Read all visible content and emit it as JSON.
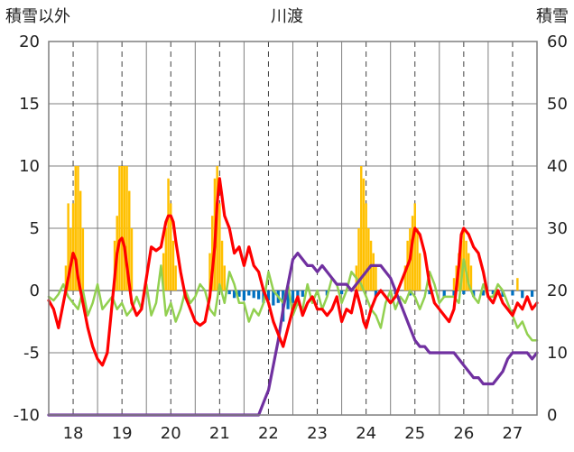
{
  "chart_data": {
    "type": "line",
    "title": "川渡",
    "ylabel_left": "積雪以外",
    "ylabel_right": "積雪",
    "xlabel": "",
    "x_range": [
      17.5,
      27.5
    ],
    "ylim_left": [
      -10,
      20
    ],
    "ylim_right": [
      0,
      60
    ],
    "y_ticks_left": [
      -10,
      -5,
      0,
      5,
      10,
      15,
      20
    ],
    "y_ticks_right": [
      0,
      10,
      20,
      30,
      40,
      50,
      60
    ],
    "x_ticks": [
      "18",
      "19",
      "20",
      "21",
      "22",
      "23",
      "24",
      "25",
      "26",
      "27"
    ],
    "grid": true,
    "legend": "none",
    "colors": {
      "red": "#ff0000",
      "green": "#92d050",
      "purple": "#7030a0",
      "orange": "#ffc000",
      "blue": "#0070c0",
      "frame": "#7f7f7f"
    },
    "bars_orange": {
      "axis": "left",
      "x": [
        17.85,
        17.9,
        17.95,
        18.0,
        18.05,
        18.1,
        18.15,
        18.2,
        18.85,
        18.9,
        18.95,
        19.0,
        19.05,
        19.1,
        19.15,
        19.2,
        19.85,
        19.9,
        19.95,
        20.0,
        20.05,
        20.1,
        20.8,
        20.85,
        20.9,
        20.95,
        21.0,
        21.05,
        21.1,
        23.8,
        23.85,
        23.9,
        23.95,
        24.0,
        24.05,
        24.1,
        24.15,
        24.2,
        24.8,
        24.85,
        24.9,
        24.95,
        25.0,
        25.05,
        25.1,
        25.8,
        25.85,
        25.9,
        25.95,
        26.0,
        26.05,
        26.1,
        26.15,
        27.1
      ],
      "values": [
        2,
        7,
        5,
        7,
        10,
        10,
        8,
        5,
        4,
        6,
        10,
        10,
        10,
        10,
        8,
        5,
        3,
        5,
        9,
        7,
        4,
        2,
        3,
        6,
        9,
        10,
        7,
        4,
        2,
        2,
        5,
        10,
        9,
        7,
        5,
        4,
        3,
        2,
        2,
        4,
        5,
        6,
        7,
        5,
        3,
        1,
        2,
        3,
        4,
        5,
        4,
        3,
        2,
        1
      ]
    },
    "bars_blue": {
      "axis": "left",
      "x": [
        21.2,
        21.3,
        21.4,
        21.5,
        21.6,
        21.7,
        21.8,
        21.9,
        22.0,
        22.1,
        22.2,
        22.3,
        22.4,
        22.5,
        22.6,
        22.7,
        23.0,
        23.2,
        23.5,
        23.8,
        24.2,
        24.6,
        24.9,
        25.3,
        25.6,
        25.8,
        26.0,
        26.2,
        26.4,
        26.6,
        26.8,
        27.0,
        27.2,
        27.4
      ],
      "values": [
        -0.3,
        -0.6,
        -0.5,
        -0.8,
        -0.4,
        -0.6,
        -0.7,
        -1.0,
        -0.8,
        -1.2,
        -1.0,
        -2.5,
        -1.5,
        -1.0,
        -0.8,
        -0.5,
        -0.3,
        -0.4,
        -0.3,
        -0.4,
        -0.5,
        -0.3,
        -0.4,
        -0.3,
        -0.5,
        -0.4,
        -0.3,
        -0.5,
        -0.4,
        -0.3,
        -0.5,
        -0.4,
        -0.6,
        -0.5
      ]
    },
    "series": [
      {
        "color": "red",
        "axis": "left",
        "x": [
          17.5,
          17.6,
          17.7,
          17.8,
          17.9,
          18.0,
          18.05,
          18.1,
          18.2,
          18.3,
          18.4,
          18.5,
          18.6,
          18.7,
          18.8,
          18.9,
          18.95,
          19.0,
          19.05,
          19.1,
          19.2,
          19.3,
          19.4,
          19.5,
          19.6,
          19.7,
          19.8,
          19.9,
          19.95,
          20.0,
          20.05,
          20.1,
          20.2,
          20.3,
          20.4,
          20.5,
          20.6,
          20.7,
          20.8,
          20.9,
          20.95,
          21.0,
          21.05,
          21.1,
          21.2,
          21.3,
          21.4,
          21.5,
          21.6,
          21.7,
          21.8,
          21.9,
          22.0,
          22.1,
          22.2,
          22.3,
          22.4,
          22.5,
          22.6,
          22.7,
          22.8,
          22.9,
          23.0,
          23.1,
          23.2,
          23.3,
          23.4,
          23.5,
          23.6,
          23.7,
          23.8,
          23.9,
          23.95,
          24.0,
          24.1,
          24.2,
          24.3,
          24.4,
          24.5,
          24.6,
          24.7,
          24.8,
          24.9,
          24.95,
          25.0,
          25.1,
          25.2,
          25.3,
          25.4,
          25.5,
          25.6,
          25.7,
          25.8,
          25.9,
          25.95,
          26.0,
          26.1,
          26.2,
          26.3,
          26.4,
          26.5,
          26.6,
          26.7,
          26.8,
          26.9,
          27.0,
          27.1,
          27.2,
          27.3,
          27.4,
          27.5
        ],
        "values": [
          -0.8,
          -1.5,
          -3.0,
          -1.0,
          1.0,
          3.0,
          2.5,
          1.0,
          -1.0,
          -3.0,
          -4.5,
          -5.5,
          -6.0,
          -5.0,
          -1.0,
          3.0,
          4.0,
          4.2,
          3.5,
          2.0,
          -1.0,
          -2.0,
          -1.5,
          1.0,
          3.5,
          3.2,
          3.5,
          5.5,
          6.0,
          6.0,
          5.5,
          4.0,
          1.5,
          -0.5,
          -1.5,
          -2.5,
          -2.8,
          -2.5,
          -0.5,
          3.5,
          7.0,
          9.0,
          7.5,
          6.0,
          5.0,
          3.0,
          3.5,
          2.0,
          3.5,
          2.0,
          1.5,
          0.0,
          -1.0,
          -2.5,
          -3.5,
          -4.5,
          -3.0,
          -1.5,
          -0.5,
          -2.0,
          -1.0,
          -0.5,
          -1.5,
          -1.5,
          -2.0,
          -1.5,
          -0.5,
          -2.5,
          -1.5,
          -1.8,
          0.0,
          -1.5,
          -2.5,
          -3.0,
          -1.5,
          -0.5,
          0.0,
          -0.5,
          -1.0,
          -0.5,
          0.5,
          1.5,
          2.5,
          4.0,
          5.0,
          4.5,
          3.0,
          0.5,
          -1.0,
          -1.5,
          -2.0,
          -2.5,
          -1.5,
          2.0,
          4.5,
          5.0,
          4.5,
          3.5,
          3.0,
          1.5,
          -0.5,
          -1.0,
          0.0,
          -1.0,
          -1.5,
          -2.0,
          -1.0,
          -1.5,
          -0.5,
          -1.5,
          -1.0
        ]
      },
      {
        "color": "green",
        "axis": "left",
        "x": [
          17.5,
          17.6,
          17.7,
          17.8,
          17.9,
          18.0,
          18.1,
          18.2,
          18.3,
          18.4,
          18.5,
          18.6,
          18.7,
          18.8,
          18.9,
          19.0,
          19.1,
          19.2,
          19.3,
          19.4,
          19.5,
          19.6,
          19.7,
          19.8,
          19.9,
          20.0,
          20.1,
          20.2,
          20.3,
          20.4,
          20.5,
          20.6,
          20.7,
          20.8,
          20.9,
          21.0,
          21.1,
          21.2,
          21.3,
          21.4,
          21.5,
          21.6,
          21.7,
          21.8,
          21.9,
          22.0,
          22.1,
          22.2,
          22.3,
          22.4,
          22.5,
          22.6,
          22.7,
          22.8,
          22.9,
          23.0,
          23.1,
          23.2,
          23.3,
          23.4,
          23.5,
          23.6,
          23.7,
          23.8,
          23.9,
          24.0,
          24.1,
          24.2,
          24.3,
          24.4,
          24.5,
          24.6,
          24.7,
          24.8,
          24.9,
          25.0,
          25.1,
          25.2,
          25.3,
          25.4,
          25.5,
          25.6,
          25.7,
          25.8,
          25.9,
          26.0,
          26.1,
          26.2,
          26.3,
          26.4,
          26.5,
          26.6,
          26.7,
          26.8,
          26.9,
          27.0,
          27.1,
          27.2,
          27.3,
          27.4,
          27.5
        ],
        "values": [
          -0.5,
          -0.8,
          -0.3,
          0.5,
          -0.5,
          -1.0,
          -1.5,
          0.0,
          -2.0,
          -1.0,
          0.5,
          -1.5,
          -1.0,
          -0.5,
          -1.5,
          -1.0,
          -2.0,
          -1.5,
          -0.5,
          -1.5,
          0.5,
          -2.0,
          -1.0,
          2.0,
          -2.0,
          -1.0,
          -2.5,
          -1.5,
          0.0,
          -1.0,
          -0.5,
          0.5,
          0.0,
          -1.5,
          -2.0,
          0.5,
          -1.0,
          1.5,
          0.5,
          -1.0,
          -1.0,
          -2.5,
          -1.5,
          -2.0,
          -1.0,
          1.5,
          0.0,
          -0.5,
          -1.0,
          0.5,
          -2.0,
          -1.0,
          -1.5,
          0.5,
          -1.0,
          0.0,
          -1.5,
          -0.5,
          1.0,
          0.5,
          -1.0,
          0.0,
          1.5,
          1.0,
          0.5,
          -0.5,
          -1.5,
          -2.0,
          -3.0,
          -1.0,
          0.0,
          -1.5,
          -0.5,
          -1.0,
          0.0,
          -0.5,
          -1.5,
          -0.5,
          1.5,
          0.5,
          -1.0,
          -0.5,
          -0.5,
          -0.5,
          -1.0,
          2.5,
          0.5,
          -0.5,
          -1.0,
          0.5,
          -0.5,
          -0.5,
          0.5,
          0.0,
          -1.0,
          -2.0,
          -3.0,
          -2.5,
          -3.5,
          -4.0,
          -4.0
        ]
      },
      {
        "color": "purple",
        "axis": "right",
        "x": [
          17.5,
          21.8,
          21.9,
          22.0,
          22.1,
          22.2,
          22.3,
          22.4,
          22.5,
          22.6,
          22.7,
          22.8,
          22.9,
          23.0,
          23.1,
          23.2,
          23.3,
          23.4,
          23.5,
          23.6,
          23.7,
          23.8,
          23.9,
          24.0,
          24.1,
          24.2,
          24.3,
          24.4,
          24.5,
          24.6,
          24.7,
          24.8,
          24.9,
          25.0,
          25.1,
          25.2,
          25.3,
          25.4,
          25.5,
          25.6,
          25.7,
          25.8,
          25.9,
          26.0,
          26.1,
          26.2,
          26.3,
          26.4,
          26.5,
          26.6,
          26.7,
          26.8,
          26.9,
          27.0,
          27.1,
          27.2,
          27.3,
          27.4,
          27.5
        ],
        "values": [
          0,
          0,
          2,
          4,
          8,
          12,
          17,
          21,
          25,
          26,
          25,
          24,
          24,
          23,
          24,
          23,
          22,
          21,
          21,
          21,
          20,
          21,
          22,
          23,
          24,
          24,
          24,
          23,
          22,
          20,
          18,
          16,
          14,
          12,
          11,
          11,
          10,
          10,
          10,
          10,
          10,
          10,
          9,
          8,
          7,
          6,
          6,
          5,
          5,
          5,
          6,
          7,
          9,
          10,
          10,
          10,
          10,
          9,
          10
        ]
      }
    ]
  }
}
